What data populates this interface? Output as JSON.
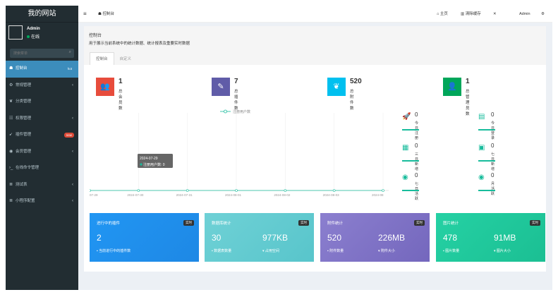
{
  "sidebar": {
    "logo": "我的网站",
    "user": {
      "name": "Admin",
      "status": "在线"
    },
    "search_placeholder": "搜索菜单",
    "items": [
      {
        "icon": "dashboard-icon",
        "label": "控制台",
        "badge": "hot",
        "active": true
      },
      {
        "icon": "gears-icon",
        "label": "常规管理",
        "chevron": true
      },
      {
        "icon": "leaf-icon",
        "label": "分类管理"
      },
      {
        "icon": "group-icon",
        "label": "权限管理",
        "chevron": true
      },
      {
        "icon": "rocket-icon",
        "label": "插件管理",
        "badge": "new"
      },
      {
        "icon": "user-circle-icon",
        "label": "会员管理",
        "chevron": true
      },
      {
        "icon": "terminal-icon",
        "label": "在线命令管理"
      },
      {
        "icon": "list-icon",
        "label": "测试表",
        "chevron": true
      },
      {
        "icon": "list-icon",
        "label": "小程序配置",
        "chevron": true
      }
    ]
  },
  "topbar": {
    "menu_icon": "≡",
    "tab": "控制台",
    "home": "主页",
    "clear_cache": "清除缓存",
    "fullscreen_icon": "✕",
    "user": "Admin",
    "settings_icon": "⚙"
  },
  "panel": {
    "title": "控制台",
    "desc": "用于展示当前系统中的统计数据、统计报表及重要实时数据",
    "tabs": [
      "控制台",
      "自定义"
    ]
  },
  "stats": [
    {
      "value": "1",
      "label": "总会员数",
      "color": "#e74c3c",
      "icon": "users-icon"
    },
    {
      "value": "7",
      "label": "总插件数",
      "color": "#605ca8",
      "icon": "magic-icon"
    },
    {
      "value": "520",
      "label": "总附件数",
      "color": "#00c0ef",
      "icon": "leaf-icon"
    },
    {
      "value": "1",
      "label": "总管理员数",
      "color": "#00a65a",
      "icon": "user-icon"
    }
  ],
  "chart_data": {
    "type": "line",
    "legend": "注册用户数",
    "x": [
      "2024-07-29",
      "2024-07-30",
      "2024-07-31",
      "2024-08-01",
      "2024-08-02",
      "2024-08-03",
      "2024-08-04"
    ],
    "x_ticks": [
      "07-29",
      "2024-07-30",
      "2024-07-31",
      "2024-08-01",
      "2024-08-02",
      "2024-08-03",
      "2024-08"
    ],
    "series": [
      {
        "name": "注册用户数",
        "values": [
          0,
          0,
          0,
          0,
          0,
          0,
          0
        ]
      }
    ],
    "tooltip": {
      "date": "2024-07-29",
      "label": "注册用户数",
      "value": "0"
    }
  },
  "mini_stats": [
    {
      "icon": "rocket-icon",
      "glyph": "🚀",
      "value": "0",
      "label": "今日注册"
    },
    {
      "icon": "id-card-icon",
      "glyph": "▤",
      "value": "0",
      "label": "今日登录"
    },
    {
      "icon": "calendar-icon",
      "glyph": "▦",
      "value": "0",
      "label": "三日新增"
    },
    {
      "icon": "calendar-plus-icon",
      "glyph": "▣",
      "value": "0",
      "label": "七日新增"
    },
    {
      "icon": "user-circle-icon",
      "glyph": "◉",
      "value": "0",
      "label": "七日活跃"
    },
    {
      "icon": "user-circle-icon",
      "glyph": "◉",
      "value": "0",
      "label": "月活跃"
    }
  ],
  "boxes": [
    {
      "title": "进行中的插件",
      "tag": "实时",
      "color_a": "#2196f3",
      "color_b": "#1e88e5",
      "left_num": "2",
      "left_sub": "当前进行中的插件数",
      "right_num": "",
      "right_sub": ""
    },
    {
      "title": "数据库统计",
      "tag": "实时",
      "color_a": "#6fd1d6",
      "color_b": "#58c5cb",
      "left_num": "30",
      "left_sub": "数据表数量",
      "right_num": "977KB",
      "right_sub": "占用空间"
    },
    {
      "title": "附件统计",
      "tag": "实时",
      "color_a": "#8b7fcf",
      "color_b": "#7467bd",
      "left_num": "520",
      "left_sub": "附件数量",
      "right_num": "226MB",
      "right_sub": "附件大小"
    },
    {
      "title": "图片统计",
      "tag": "实时",
      "color_a": "#25d1a4",
      "color_b": "#1bbf93",
      "left_num": "478",
      "left_sub": "图片数量",
      "right_num": "91MB",
      "right_sub": "图片大小"
    }
  ]
}
